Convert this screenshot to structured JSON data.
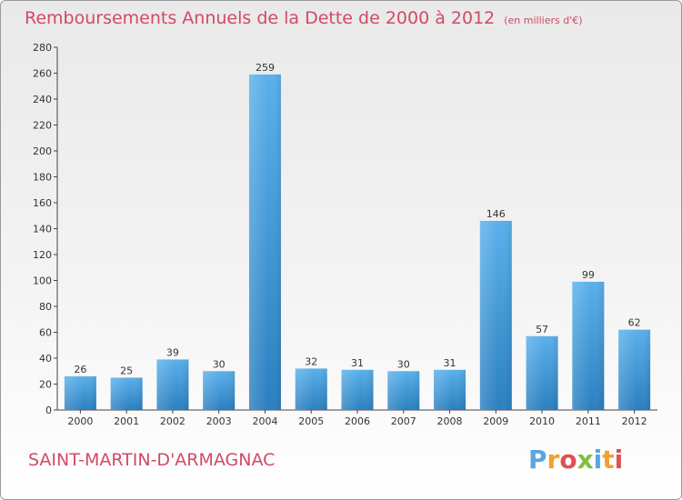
{
  "title": "Remboursements Annuels de la Dette de 2000 à 2012",
  "subtitle": "(en milliers d'€)",
  "town": "SAINT-MARTIN-D'ARMAGNAC",
  "brand": "Proxiti",
  "colors": {
    "title": "#d14a66",
    "bar_top": "#5ab0ea",
    "bar_bottom": "#2a7fc0",
    "logo_letters": [
      "#5aa5e0",
      "#f0a030",
      "#e05050",
      "#7fc040",
      "#5aa5e0",
      "#f0a030",
      "#e05050"
    ]
  },
  "chart_data": {
    "type": "bar",
    "categories": [
      "2000",
      "2001",
      "2002",
      "2003",
      "2004",
      "2005",
      "2006",
      "2007",
      "2008",
      "2009",
      "2010",
      "2011",
      "2012"
    ],
    "values": [
      26,
      25,
      39,
      30,
      259,
      32,
      31,
      30,
      31,
      146,
      57,
      99,
      62
    ],
    "data_labels": [
      "26",
      "25",
      "39",
      "30",
      "259",
      "32",
      "31",
      "30",
      "31",
      "146",
      "57",
      "99",
      "62"
    ],
    "ylim": [
      0,
      280
    ],
    "yticks": [
      0,
      20,
      40,
      60,
      80,
      100,
      120,
      140,
      160,
      180,
      200,
      220,
      240,
      260,
      280
    ],
    "grid": false
  }
}
